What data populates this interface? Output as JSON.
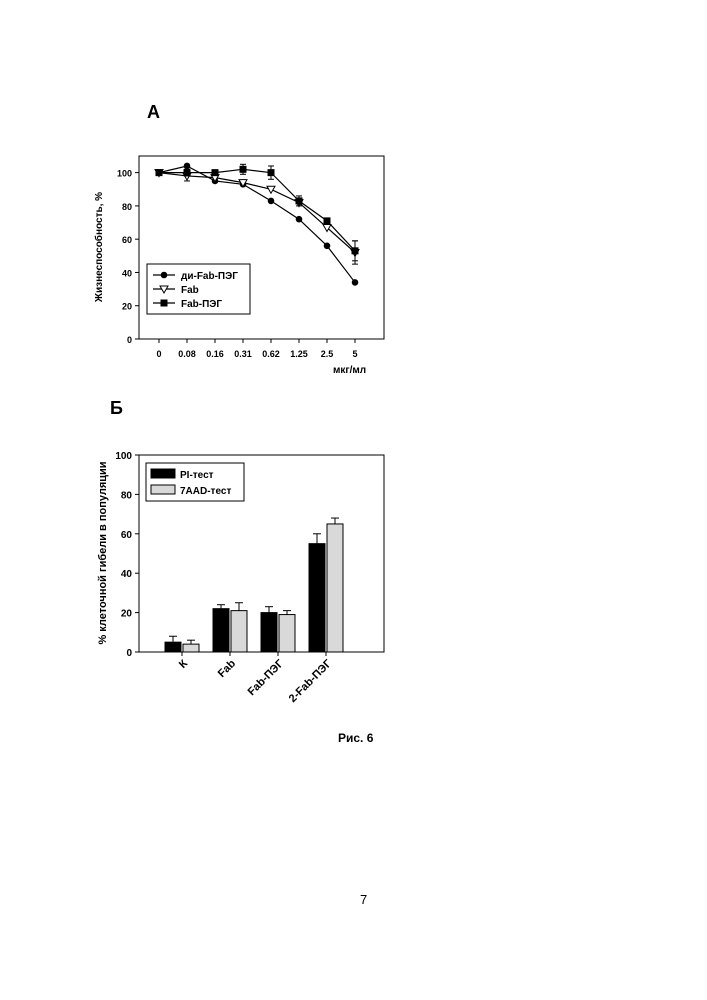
{
  "panel_a_label": "А",
  "panel_b_label": "Б",
  "caption": "Рис. 6",
  "page_number": "7",
  "chart_data": [
    {
      "type": "line",
      "title": "",
      "xlabel": "мкг/мл",
      "ylabel": "Жизнеспособность, %",
      "categories": [
        "0",
        "0.08",
        "0.16",
        "0.31",
        "0.62",
        "1.25",
        "2.5",
        "5"
      ],
      "ylim": [
        0,
        110
      ],
      "yticks": [
        0,
        20,
        40,
        60,
        80,
        100
      ],
      "grid": false,
      "legend_position": "bottom-left",
      "series": [
        {
          "name": "ди-Fab-ПЭГ",
          "marker": "circle",
          "values": [
            100,
            104,
            95,
            93,
            83,
            72,
            56,
            34
          ],
          "errors": [
            0,
            0,
            0,
            0,
            0,
            0,
            0,
            0
          ]
        },
        {
          "name": "Fab",
          "marker": "triangle-down-open",
          "values": [
            100,
            98,
            97,
            94,
            90,
            82,
            67,
            52
          ],
          "errors": [
            0,
            3,
            0,
            0,
            0,
            0,
            0,
            7
          ]
        },
        {
          "name": "Fab-ПЭГ",
          "marker": "square",
          "values": [
            100,
            100,
            100,
            102,
            100,
            83,
            71,
            53
          ],
          "errors": [
            0,
            2,
            0,
            3,
            4,
            3,
            0,
            6
          ]
        }
      ]
    },
    {
      "type": "bar",
      "title": "",
      "xlabel": "",
      "ylabel": "% клеточной гибели в популяции",
      "categories": [
        "К",
        "Fab",
        "Fab-ПЭГ",
        "2-Fab-ПЭГ"
      ],
      "ylim": [
        0,
        100
      ],
      "yticks": [
        0,
        20,
        40,
        60,
        80,
        100
      ],
      "grid": false,
      "legend_position": "top-left",
      "series": [
        {
          "name": "PI-тест",
          "color": "#000000",
          "values": [
            5,
            22,
            20,
            55
          ],
          "errors": [
            3,
            2,
            3,
            5
          ]
        },
        {
          "name": "7AAD-тест",
          "color": "#d9d9d9",
          "values": [
            4,
            21,
            19,
            65
          ],
          "errors": [
            2,
            4,
            2,
            3
          ]
        }
      ]
    }
  ]
}
